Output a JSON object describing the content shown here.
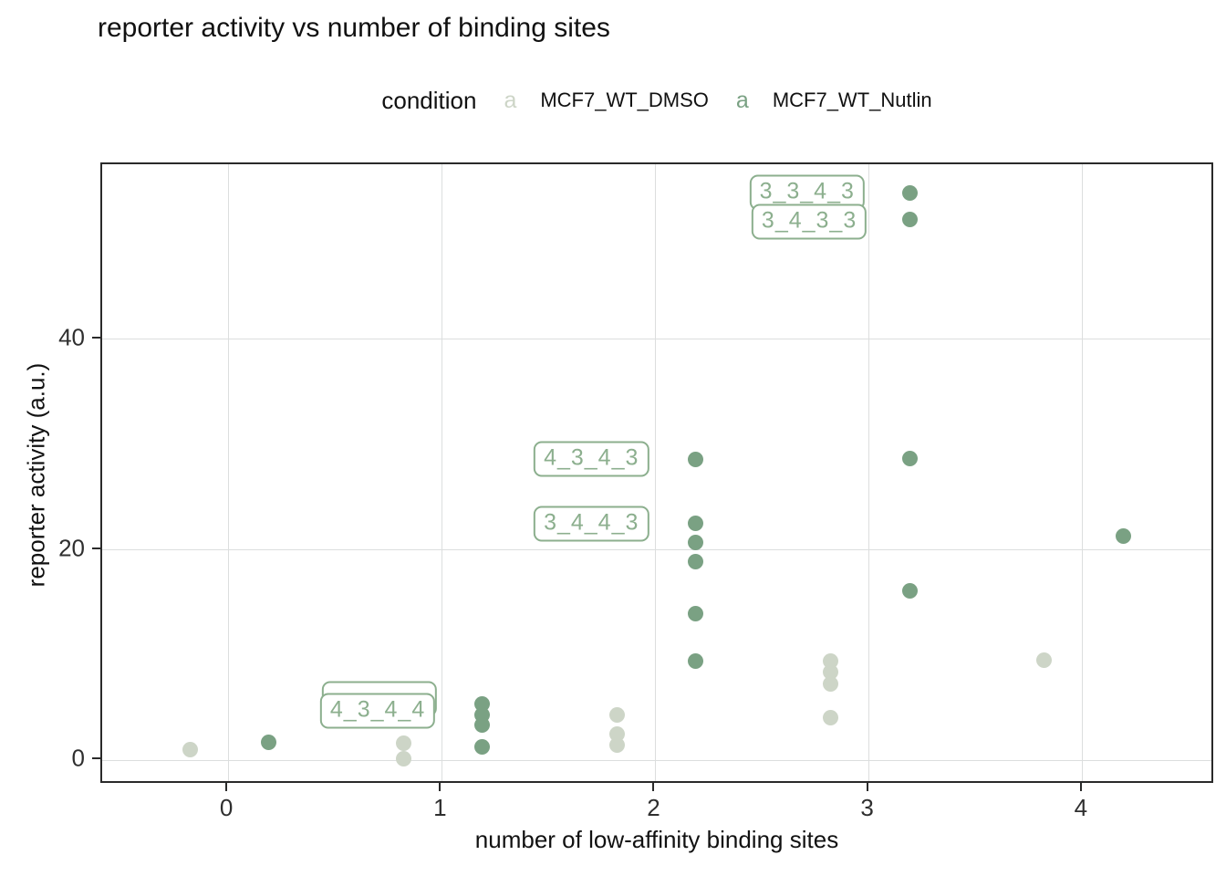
{
  "title": "reporter activity vs number of binding sites",
  "legend": {
    "title": "condition",
    "marker_glyph": "a",
    "entries": [
      {
        "label": "MCF7_WT_DMSO",
        "color": "#cdd5c7"
      },
      {
        "label": "MCF7_WT_Nutlin",
        "color": "#7aa183"
      }
    ]
  },
  "chart_data": {
    "type": "scatter",
    "title": "reporter activity vs number of binding sites",
    "xlabel": "number of low-affinity binding sites",
    "ylabel": "reporter activity (a.u.)",
    "xlim": [
      -0.59,
      4.62
    ],
    "ylim": [
      -2.3,
      56.6
    ],
    "x_ticks": [
      0,
      1,
      2,
      3,
      4
    ],
    "y_ticks": [
      0,
      20,
      40
    ],
    "grid": true,
    "legend_position": "top",
    "series": [
      {
        "name": "MCF7_WT_DMSO",
        "color": "#cdd5c7",
        "points": [
          [
            -0.18,
            1.0
          ],
          [
            0.82,
            1.6
          ],
          [
            0.82,
            0.2
          ],
          [
            1.82,
            4.3
          ],
          [
            1.82,
            2.5
          ],
          [
            1.82,
            1.5
          ],
          [
            2.82,
            9.4
          ],
          [
            2.82,
            8.4
          ],
          [
            2.82,
            7.3
          ],
          [
            2.82,
            4.1
          ],
          [
            3.82,
            9.5
          ]
        ]
      },
      {
        "name": "MCF7_WT_Nutlin",
        "color": "#7aa183",
        "points": [
          [
            0.19,
            1.7
          ],
          [
            1.19,
            5.4
          ],
          [
            1.19,
            4.3
          ],
          [
            1.19,
            3.4
          ],
          [
            1.19,
            1.3
          ],
          [
            2.19,
            28.6
          ],
          [
            2.19,
            22.5
          ],
          [
            2.19,
            20.7
          ],
          [
            2.19,
            18.9
          ],
          [
            2.19,
            13.9
          ],
          [
            2.19,
            9.4
          ],
          [
            3.19,
            53.9
          ],
          [
            3.19,
            51.4
          ],
          [
            3.19,
            28.7
          ],
          [
            3.19,
            16.1
          ],
          [
            4.19,
            21.3
          ]
        ]
      }
    ],
    "annotations": [
      {
        "label": "3_3_4_3",
        "x": 2.71,
        "y": 53.9,
        "shadow": false
      },
      {
        "label": "3_4_3_3",
        "x": 2.72,
        "y": 51.1,
        "shadow": false
      },
      {
        "label": "4_3_4_3",
        "x": 1.7,
        "y": 28.6,
        "shadow": false
      },
      {
        "label": "3_4_4_3",
        "x": 1.7,
        "y": 22.5,
        "shadow": false
      },
      {
        "label": "4_3_4_4",
        "x": 0.7,
        "y": 4.7,
        "shadow": true
      }
    ],
    "annotation_color": "#8caf8e"
  }
}
